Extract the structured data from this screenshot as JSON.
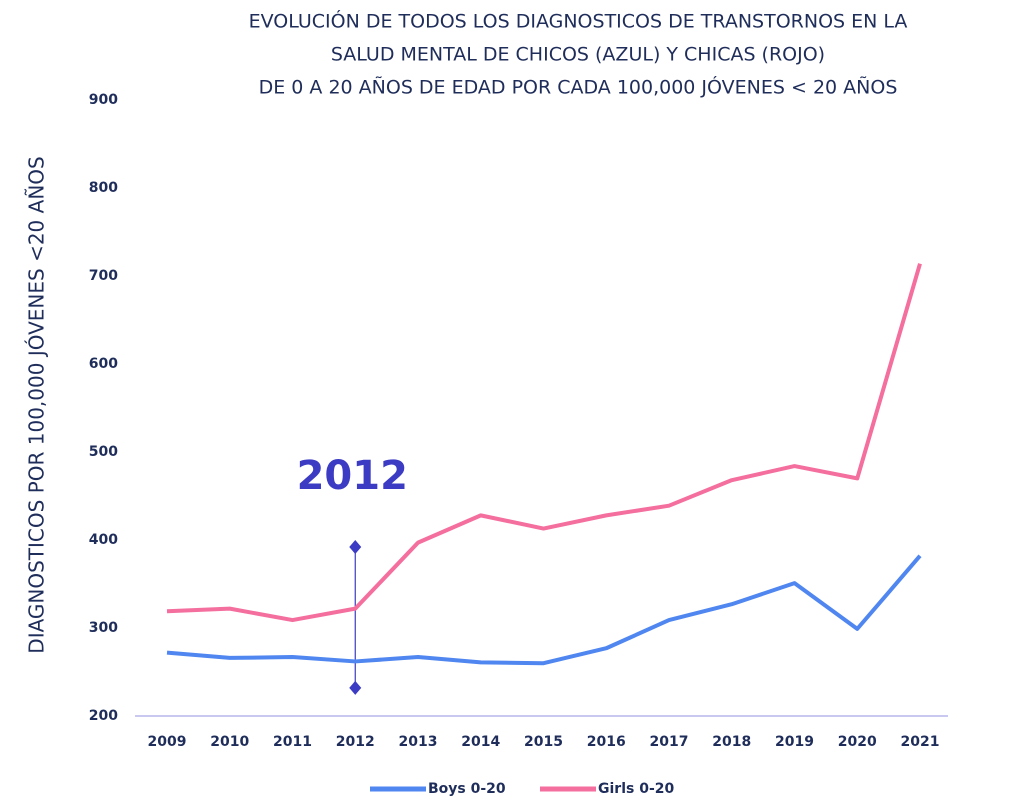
{
  "chart_data": {
    "type": "line",
    "title": [
      "EVOLUCIÓN DE TODOS LOS DIAGNOSTICOS DE TRANSTORNOS EN LA",
      "SALUD MENTAL DE CHICOS (AZUL) Y CHICAS (ROJO)",
      "DE 0 A 20 AÑOS DE EDAD POR CADA 100,000 JÓVENES < 20 AÑOS"
    ],
    "y_label": "DIAGNOSTICOS POR 100,000 JÓVENES <20 AÑOS",
    "categories": [
      "2009",
      "2010",
      "2011",
      "2012",
      "2013",
      "2014",
      "2015",
      "2016",
      "2017",
      "2018",
      "2019",
      "2020",
      "2021"
    ],
    "series": [
      {
        "name": "Boys 0-20",
        "color": "#4f86f0",
        "values": [
          272,
          266,
          267,
          262,
          267,
          261,
          260,
          277,
          309,
          327,
          351,
          299,
          382
        ]
      },
      {
        "name": "Girls 0-20",
        "color": "#f46e9e",
        "values": [
          319,
          322,
          309,
          322,
          397,
          428,
          413,
          428,
          439,
          468,
          484,
          470,
          714
        ]
      }
    ],
    "annotation": {
      "text": "2012",
      "category": "2012",
      "y_range": [
        232,
        392
      ],
      "color": "#3b3bc4"
    },
    "ylim": [
      200,
      900
    ],
    "yticks": [
      200,
      300,
      400,
      500,
      600,
      700,
      800,
      900
    ],
    "legend": "bottom",
    "grid": false
  }
}
